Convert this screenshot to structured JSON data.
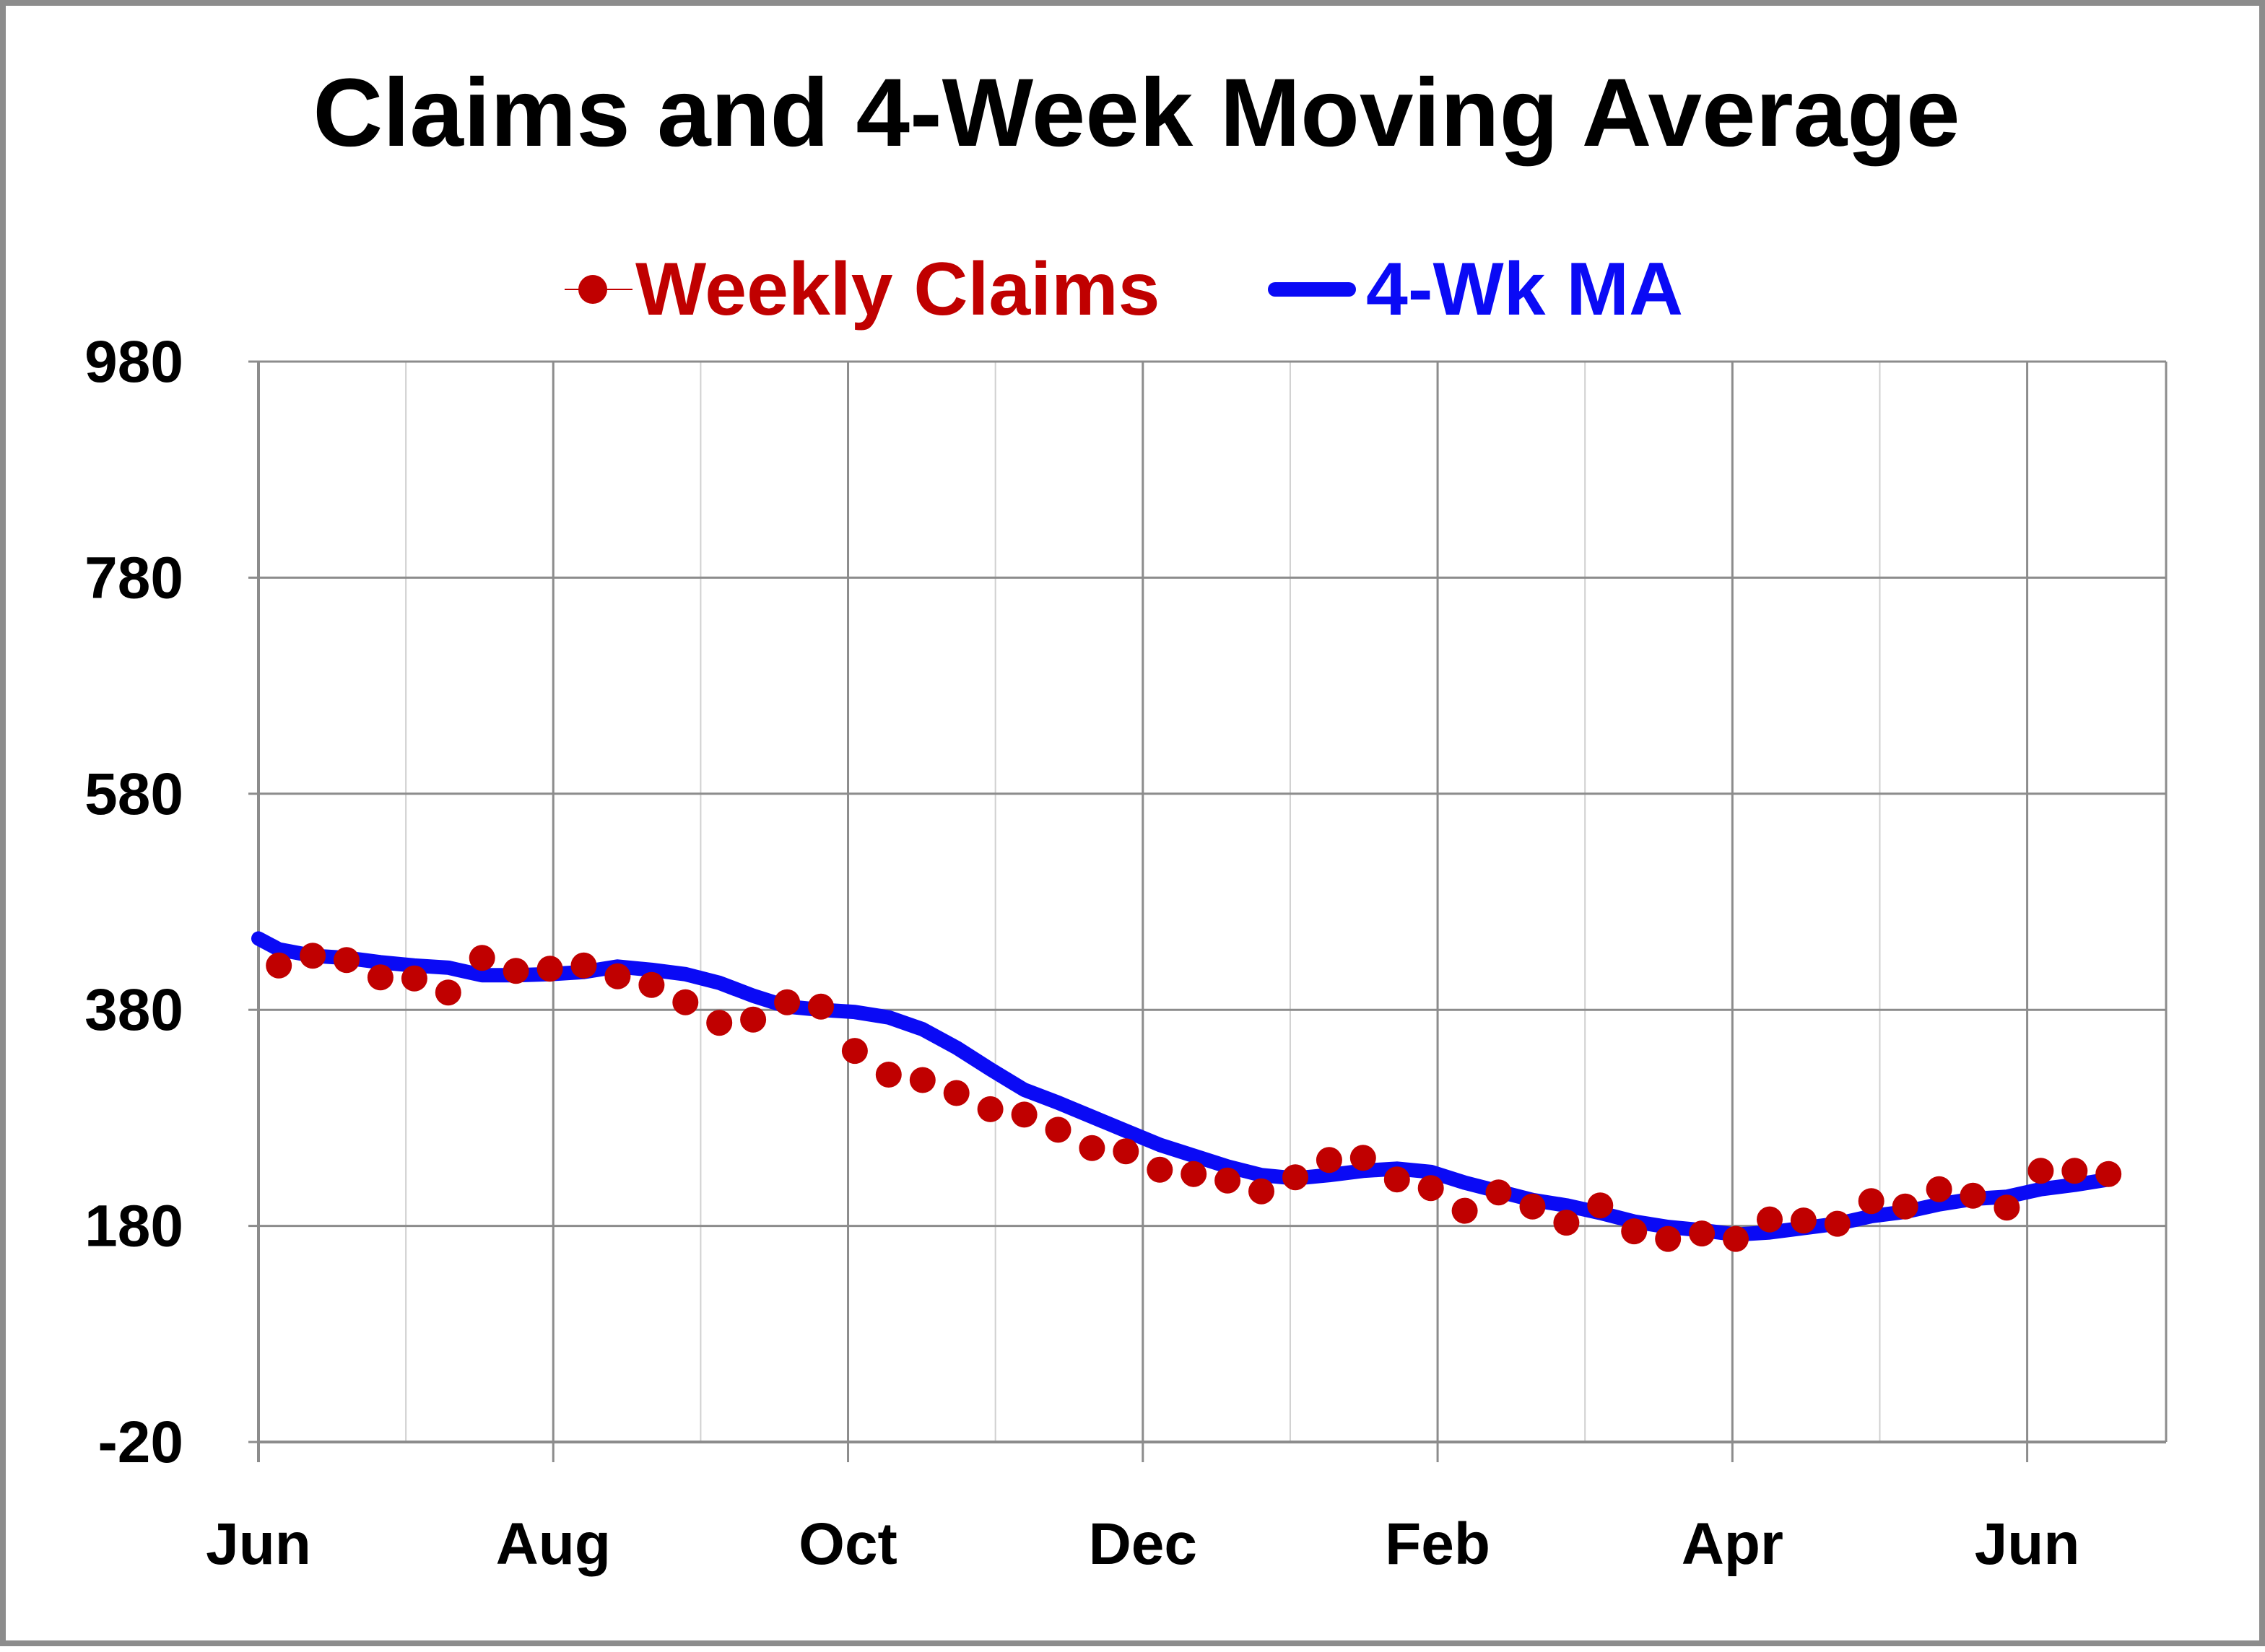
{
  "colors": {
    "claims": "#c00000",
    "moving_average": "#0a0af5",
    "grid_major": "#8c8c8c",
    "grid_minor": "#d0d0d0",
    "frame": "#8c8c8c"
  },
  "chart_data": {
    "type": "line",
    "title": "Claims and 4-Week Moving Average",
    "xlabel": "",
    "ylabel": "",
    "ylim": [
      -20,
      980
    ],
    "yticks": [
      "980",
      "780",
      "580",
      "380",
      "180",
      "-20"
    ],
    "ytick_values": [
      980,
      780,
      580,
      380,
      180,
      -20
    ],
    "xticks": [
      "Jun",
      "Aug",
      "Oct",
      "Dec",
      "Feb",
      "Apr",
      "Jun"
    ],
    "x_unit": "weeks since first Jun tick",
    "xtick_positions": [
      0,
      8.7,
      17.4,
      26.1,
      34.8,
      43.5,
      52.2
    ],
    "xlim": [
      0,
      56.3
    ],
    "grid": true,
    "legend_position": "top-center",
    "series": [
      {
        "name": "Weekly Claims",
        "style": "markers",
        "x": [
          0.6,
          1.6,
          2.6,
          3.6,
          4.6,
          5.6,
          6.6,
          7.6,
          8.6,
          9.6,
          10.6,
          11.6,
          12.6,
          13.6,
          14.6,
          15.6,
          16.6,
          17.6,
          18.6,
          19.6,
          20.6,
          21.6,
          22.6,
          23.6,
          24.6,
          25.6,
          26.6,
          27.6,
          28.6,
          29.6,
          30.6,
          31.6,
          32.6,
          33.6,
          34.6,
          35.6,
          36.6,
          37.6,
          38.6,
          39.6,
          40.6,
          41.6,
          42.6,
          43.6,
          44.6,
          45.6,
          46.6,
          47.6,
          48.6,
          49.6,
          50.6,
          51.6,
          52.6,
          53.6,
          54.6
        ],
        "values": [
          421,
          430,
          426,
          410,
          409,
          396,
          428,
          416,
          418,
          421,
          411,
          403,
          387,
          368,
          371,
          387,
          383,
          342,
          320,
          315,
          303,
          288,
          283,
          269,
          252,
          249,
          232,
          228,
          222,
          212,
          225,
          241,
          243,
          223,
          215,
          194,
          211,
          198,
          183,
          199,
          175,
          168,
          173,
          168,
          186,
          185,
          182,
          203,
          198,
          214,
          208,
          197,
          231,
          231,
          228
        ]
      },
      {
        "name": "4-Wk MA",
        "style": "line",
        "x": [
          0,
          0.6,
          1.6,
          2.6,
          3.6,
          4.6,
          5.6,
          6.6,
          7.6,
          8.6,
          9.6,
          10.6,
          11.6,
          12.6,
          13.6,
          14.6,
          15.6,
          16.6,
          17.6,
          18.6,
          19.6,
          20.6,
          21.6,
          22.6,
          23.6,
          24.6,
          25.6,
          26.6,
          27.6,
          28.6,
          29.6,
          30.6,
          31.6,
          32.6,
          33.6,
          34.6,
          35.6,
          36.6,
          37.6,
          38.6,
          39.6,
          40.6,
          41.6,
          42.6,
          43.6,
          44.6,
          45.6,
          46.6,
          47.6,
          48.6,
          49.6,
          50.6,
          51.6,
          52.6,
          53.6,
          54.6
        ],
        "values": [
          446,
          436,
          430,
          428,
          424,
          421,
          419,
          412,
          412,
          413,
          415,
          420,
          417,
          413,
          405,
          393,
          383,
          380,
          378,
          373,
          362,
          345,
          325,
          306,
          294,
          281,
          268,
          255,
          245,
          235,
          227,
          224,
          227,
          231,
          233,
          230,
          220,
          212,
          204,
          199,
          192,
          184,
          179,
          176,
          172,
          174,
          178,
          182,
          189,
          193,
          200,
          205,
          207,
          214,
          218,
          223
        ]
      }
    ]
  }
}
